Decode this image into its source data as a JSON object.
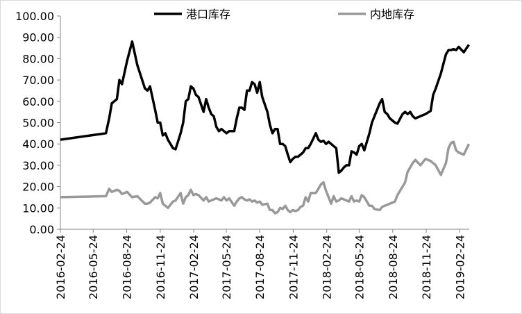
{
  "chart_data": {
    "type": "line",
    "x": [
      "2016-02-24",
      "2016-06-28",
      "2016-07-07",
      "2016-07-14",
      "2016-07-28",
      "2016-08-04",
      "2016-08-11",
      "2016-08-25",
      "2016-09-08",
      "2016-09-22",
      "2016-10-13",
      "2016-10-20",
      "2016-10-27",
      "2016-11-10",
      "2016-11-17",
      "2016-11-24",
      "2016-12-01",
      "2016-12-08",
      "2016-12-15",
      "2016-12-29",
      "2017-01-05",
      "2017-01-19",
      "2017-01-26",
      "2017-02-02",
      "2017-02-09",
      "2017-02-16",
      "2017-02-23",
      "2017-03-02",
      "2017-03-09",
      "2017-03-23",
      "2017-03-30",
      "2017-04-06",
      "2017-04-13",
      "2017-04-20",
      "2017-04-27",
      "2017-05-04",
      "2017-05-11",
      "2017-05-18",
      "2017-05-25",
      "2017-06-01",
      "2017-06-15",
      "2017-06-22",
      "2017-06-29",
      "2017-07-06",
      "2017-07-13",
      "2017-07-20",
      "2017-07-27",
      "2017-08-03",
      "2017-08-10",
      "2017-08-17",
      "2017-08-24",
      "2017-08-31",
      "2017-09-14",
      "2017-09-21",
      "2017-09-28",
      "2017-10-05",
      "2017-10-12",
      "2017-10-19",
      "2017-10-26",
      "2017-11-02",
      "2017-11-09",
      "2017-11-16",
      "2017-11-23",
      "2017-11-30",
      "2017-12-07",
      "2017-12-14",
      "2017-12-21",
      "2017-12-28",
      "2018-01-04",
      "2018-01-11",
      "2018-01-25",
      "2018-02-01",
      "2018-02-08",
      "2018-02-15",
      "2018-02-22",
      "2018-03-01",
      "2018-03-08",
      "2018-03-15",
      "2018-03-22",
      "2018-03-29",
      "2018-04-05",
      "2018-04-12",
      "2018-04-19",
      "2018-04-26",
      "2018-05-03",
      "2018-05-10",
      "2018-05-17",
      "2018-05-24",
      "2018-05-31",
      "2018-06-07",
      "2018-06-14",
      "2018-06-21",
      "2018-06-28",
      "2018-07-05",
      "2018-07-19",
      "2018-07-26",
      "2018-08-02",
      "2018-08-09",
      "2018-08-16",
      "2018-08-30",
      "2018-09-06",
      "2018-09-20",
      "2018-09-27",
      "2018-10-04",
      "2018-10-11",
      "2018-10-18",
      "2018-10-25",
      "2018-11-08",
      "2018-11-22",
      "2018-12-06",
      "2018-12-13",
      "2018-12-20",
      "2019-01-03",
      "2019-01-17",
      "2019-01-24",
      "2019-01-31",
      "2019-02-07",
      "2019-02-14",
      "2019-02-21",
      "2019-03-07",
      "2019-03-21"
    ],
    "series": [
      {
        "name": "港口库存",
        "color": "#000000",
        "values": [
          42,
          45,
          52,
          59,
          61,
          70,
          68,
          79,
          88,
          77,
          66,
          65,
          67,
          56,
          50,
          50,
          44,
          45,
          42,
          38,
          37.5,
          45,
          50,
          60,
          61,
          67,
          66,
          63,
          62,
          55,
          61,
          57,
          54,
          53,
          48,
          46,
          47,
          46,
          45,
          46,
          46,
          52,
          57,
          57,
          56,
          65,
          65,
          69,
          68,
          64,
          69,
          62,
          55,
          49,
          45,
          47,
          47,
          40,
          40,
          39,
          35,
          31.5,
          33,
          34,
          34,
          35,
          36,
          38,
          38,
          40,
          45,
          42,
          41,
          41.5,
          40,
          41,
          40,
          39,
          38,
          26.5,
          27.5,
          29,
          30,
          30,
          36.5,
          36,
          35,
          39,
          40,
          37,
          41,
          45,
          50,
          53,
          59,
          61,
          55,
          54,
          52,
          50,
          49.5,
          54,
          55,
          54,
          55,
          53,
          52,
          53,
          54,
          55.5,
          63,
          66,
          73,
          82,
          84,
          84,
          84.5,
          84,
          85.5,
          83,
          86.5
        ]
      },
      {
        "name": "内地库存",
        "color": "#999999",
        "values": [
          15,
          15.5,
          19,
          17.5,
          18.5,
          18,
          16.5,
          17.5,
          15,
          15.5,
          12,
          12,
          12.5,
          15,
          14.5,
          17,
          12,
          11,
          10,
          13,
          13.5,
          17,
          12,
          15,
          16,
          18.5,
          16,
          16.5,
          16,
          13.5,
          15,
          13,
          13.5,
          14,
          14.5,
          14,
          13.5,
          15,
          13.5,
          14.5,
          11,
          13,
          14.5,
          15,
          14,
          13.5,
          14,
          13,
          13.5,
          12.5,
          13,
          11.5,
          12,
          9,
          9,
          7.5,
          8,
          10,
          9.5,
          11,
          9,
          8,
          9,
          8.5,
          9,
          10.5,
          11,
          15,
          13,
          17,
          17,
          19,
          21,
          22,
          18,
          15,
          12,
          15.5,
          13,
          13.5,
          14.5,
          14,
          13.5,
          13,
          15.5,
          13,
          13.5,
          13,
          16,
          15,
          13,
          11,
          11,
          9.5,
          9,
          10.5,
          11,
          11.5,
          12,
          13,
          16,
          20,
          22,
          27,
          29,
          31,
          32.5,
          30,
          33,
          32,
          31,
          30,
          25.5,
          31,
          38,
          40.5,
          41,
          37,
          36,
          35,
          40
        ]
      }
    ],
    "xlim": [
      "2016-02-24",
      "2019-03-22"
    ],
    "xticks": [
      "2016-02-24",
      "2016-05-24",
      "2016-08-24",
      "2016-11-24",
      "2017-02-24",
      "2017-05-24",
      "2017-08-24",
      "2017-11-24",
      "2018-02-24",
      "2018-05-24",
      "2018-08-24",
      "2018-11-24",
      "2019-02-24"
    ],
    "ylim": [
      0,
      100
    ],
    "yticks": [
      {
        "value": 0,
        "label": "0.00"
      },
      {
        "value": 10,
        "label": "10.00"
      },
      {
        "value": 20,
        "label": "20.00"
      },
      {
        "value": 30,
        "label": "30.00"
      },
      {
        "value": 40,
        "label": "40.00"
      },
      {
        "value": 50,
        "label": "50.00"
      },
      {
        "value": 60,
        "label": "60.00"
      },
      {
        "value": 70,
        "label": "70.00"
      },
      {
        "value": 80,
        "label": "80.00"
      },
      {
        "value": 90,
        "label": "90.00"
      },
      {
        "value": 100,
        "label": "100.00"
      }
    ],
    "legend": "top"
  }
}
